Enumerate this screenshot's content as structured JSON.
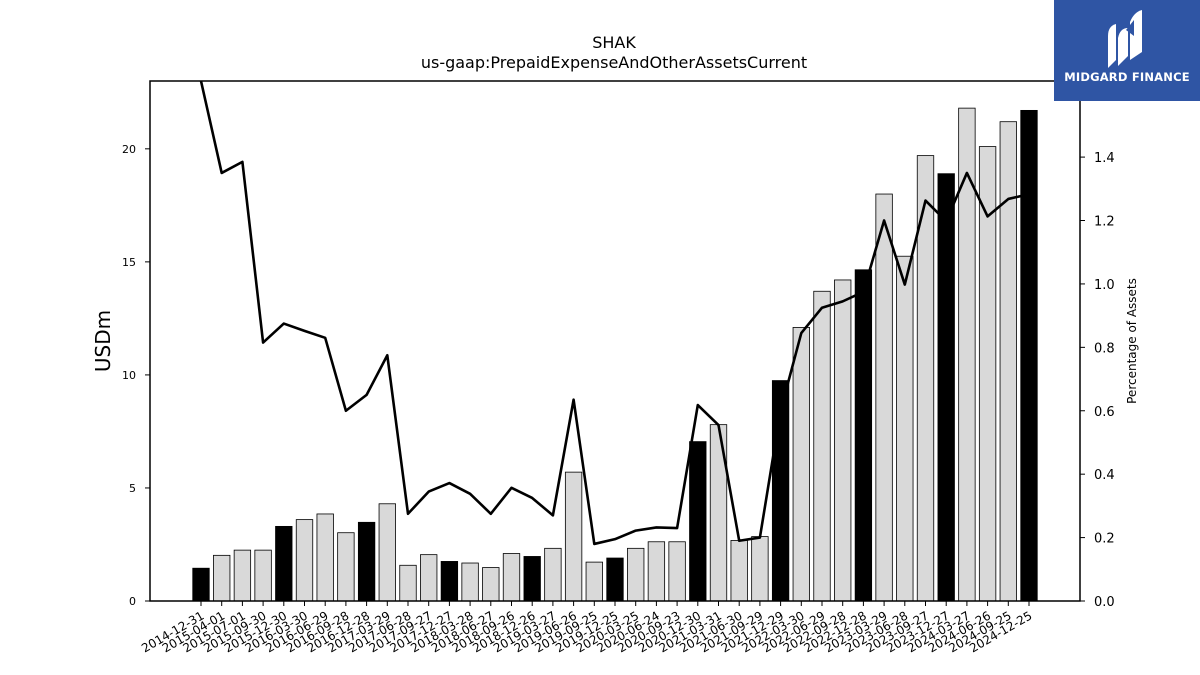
{
  "chart_data": {
    "type": "bar",
    "title": "SHAK",
    "subtitle": "us-gaap:PrepaidExpenseAndOtherAssetsCurrent",
    "ylabel": "USDm",
    "y2label": "Percentage of Assets",
    "ylim": [
      0,
      23
    ],
    "y2lim": [
      0,
      1.64
    ],
    "yticks": [
      0,
      5,
      10,
      15,
      20
    ],
    "y2ticks": [
      "0.0",
      "0.2",
      "0.4",
      "0.6",
      "0.8",
      "1.0",
      "1.2",
      "1.4"
    ],
    "grid": false,
    "categories": [
      "2014-12-31",
      "2015-04-01",
      "2015-07-01",
      "2015-09-30",
      "2015-12-30",
      "2016-03-30",
      "2016-06-29",
      "2016-09-28",
      "2016-12-28",
      "2017-03-29",
      "2017-06-28",
      "2017-09-27",
      "2017-12-27",
      "2018-03-28",
      "2018-06-27",
      "2018-09-26",
      "2018-12-26",
      "2019-03-27",
      "2019-06-26",
      "2019-09-25",
      "2019-12-25",
      "2020-03-25",
      "2020-06-24",
      "2020-09-23",
      "2020-12-30",
      "2021-03-31",
      "2021-06-30",
      "2021-09-29",
      "2021-12-29",
      "2022-03-30",
      "2022-06-29",
      "2022-09-28",
      "2022-12-28",
      "2023-03-29",
      "2023-06-28",
      "2023-09-27",
      "2023-12-27",
      "2024-03-27",
      "2024-06-26",
      "2024-09-25",
      "2024-12-25"
    ],
    "series": [
      {
        "kind": "bar",
        "values": [
          1.45,
          2.02,
          2.25,
          2.25,
          3.3,
          3.6,
          3.85,
          3.02,
          3.48,
          4.3,
          1.58,
          2.05,
          1.75,
          1.68,
          1.48,
          2.1,
          1.97,
          2.33,
          5.7,
          1.72,
          1.9,
          2.33,
          2.62,
          2.62,
          7.05,
          7.8,
          2.68,
          2.85,
          9.75,
          12.1,
          13.7,
          14.2,
          14.65,
          18.0,
          15.25,
          19.7,
          18.9,
          21.8,
          20.1,
          21.2,
          21.7
        ],
        "highlight": [
          true,
          false,
          false,
          false,
          true,
          false,
          false,
          false,
          true,
          false,
          false,
          false,
          true,
          false,
          false,
          false,
          true,
          false,
          false,
          false,
          true,
          false,
          false,
          false,
          true,
          false,
          false,
          false,
          true,
          false,
          false,
          false,
          true,
          false,
          false,
          false,
          true,
          false,
          false,
          false,
          true
        ]
      },
      {
        "kind": "line",
        "axis": "right",
        "values": [
          1.64,
          1.35,
          1.385,
          0.815,
          0.875,
          0.852,
          0.83,
          0.6,
          0.65,
          0.775,
          0.275,
          0.345,
          0.372,
          0.338,
          0.275,
          0.357,
          0.325,
          0.27,
          0.635,
          0.18,
          0.195,
          0.222,
          0.232,
          0.23,
          0.618,
          0.555,
          0.19,
          0.2,
          0.6,
          0.845,
          0.925,
          0.945,
          0.975,
          1.2,
          0.998,
          1.263,
          1.198,
          1.35,
          1.213,
          1.268,
          1.283
        ]
      }
    ],
    "colors": {
      "bar": "#d9d9d9",
      "bar_highlight": "#000000",
      "line": "#000000"
    }
  },
  "logo": {
    "text": "MIDGARD FINANCE",
    "background": "#2f55a4"
  }
}
